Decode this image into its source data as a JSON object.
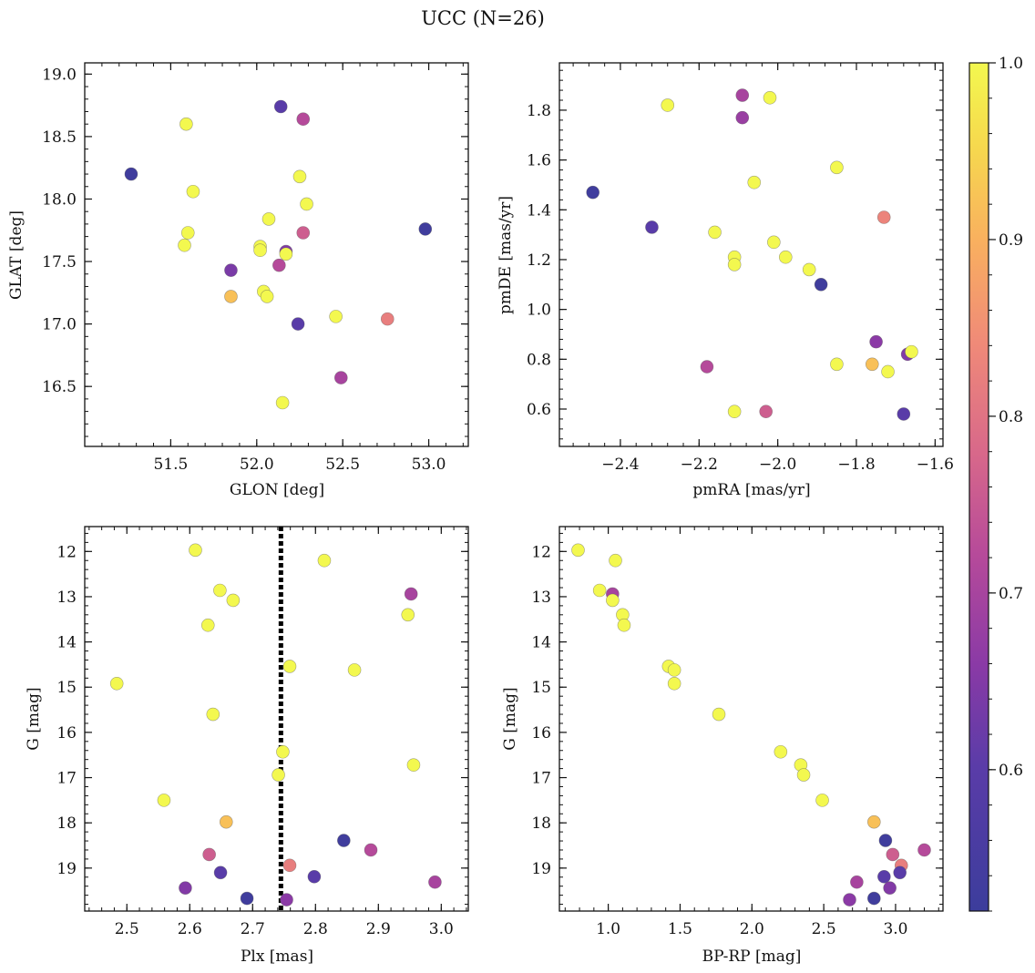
{
  "figure": {
    "title": "UCC (N=26)",
    "colorbar": {
      "ticks": [
        "0.6",
        "0.7",
        "0.8",
        "0.9",
        "1.0"
      ],
      "tick_values": [
        0.6,
        0.7,
        0.8,
        0.9,
        1.0
      ],
      "range": [
        0.52,
        1.0
      ],
      "colormap": "plasma"
    }
  },
  "chart_data": [
    {
      "type": "scatter",
      "xlabel": "GLON [deg]",
      "ylabel": "GLAT [deg]",
      "xlim": [
        51.0,
        53.23
      ],
      "ylim": [
        16.02,
        19.09
      ],
      "y_inverted": false,
      "xticks": [
        "51.5",
        "52.0",
        "52.5",
        "53.0"
      ],
      "xtick_values": [
        51.5,
        52.0,
        52.5,
        53.0
      ],
      "yticks": [
        "16.5",
        "17.0",
        "17.5",
        "18.0",
        "18.5",
        "19.0"
      ],
      "ytick_values": [
        16.5,
        17.0,
        17.5,
        18.0,
        18.5,
        19.0
      ],
      "points": [
        {
          "x": 51.27,
          "y": 18.2,
          "c": 0.53
        },
        {
          "x": 51.59,
          "y": 18.6,
          "c": 1.0
        },
        {
          "x": 51.63,
          "y": 18.06,
          "c": 1.0
        },
        {
          "x": 51.6,
          "y": 17.73,
          "c": 1.0
        },
        {
          "x": 51.58,
          "y": 17.63,
          "c": 1.0
        },
        {
          "x": 51.85,
          "y": 17.43,
          "c": 0.64
        },
        {
          "x": 51.85,
          "y": 17.22,
          "c": 0.92
        },
        {
          "x": 52.02,
          "y": 17.62,
          "c": 1.0
        },
        {
          "x": 52.02,
          "y": 17.59,
          "c": 1.0
        },
        {
          "x": 52.07,
          "y": 17.84,
          "c": 1.0
        },
        {
          "x": 52.04,
          "y": 17.26,
          "c": 1.0
        },
        {
          "x": 52.06,
          "y": 17.22,
          "c": 1.0
        },
        {
          "x": 52.14,
          "y": 18.74,
          "c": 0.6
        },
        {
          "x": 52.27,
          "y": 18.64,
          "c": 0.72
        },
        {
          "x": 52.25,
          "y": 18.18,
          "c": 1.0
        },
        {
          "x": 52.29,
          "y": 17.96,
          "c": 1.0
        },
        {
          "x": 52.27,
          "y": 17.73,
          "c": 0.76
        },
        {
          "x": 52.17,
          "y": 17.58,
          "c": 0.65
        },
        {
          "x": 52.17,
          "y": 17.56,
          "c": 1.0
        },
        {
          "x": 52.13,
          "y": 17.47,
          "c": 0.72
        },
        {
          "x": 52.24,
          "y": 17.0,
          "c": 0.6
        },
        {
          "x": 52.46,
          "y": 17.06,
          "c": 1.0
        },
        {
          "x": 52.49,
          "y": 16.57,
          "c": 0.7
        },
        {
          "x": 52.15,
          "y": 16.37,
          "c": 1.0
        },
        {
          "x": 52.76,
          "y": 17.04,
          "c": 0.82
        },
        {
          "x": 52.98,
          "y": 17.76,
          "c": 0.53
        }
      ]
    },
    {
      "type": "scatter",
      "xlabel": "pmRA [mas/yr]",
      "ylabel": "pmDE [mas/yr]",
      "xlim": [
        -2.555,
        -1.58
      ],
      "ylim": [
        0.45,
        1.99
      ],
      "y_inverted": false,
      "xticks": [
        "−2.4",
        "−2.2",
        "−2.0",
        "−1.8",
        "−1.6"
      ],
      "xtick_values": [
        -2.4,
        -2.2,
        -2.0,
        -1.8,
        -1.6
      ],
      "yticks": [
        "0.6",
        "0.8",
        "1.0",
        "1.2",
        "1.4",
        "1.6",
        "1.8"
      ],
      "ytick_values": [
        0.6,
        0.8,
        1.0,
        1.2,
        1.4,
        1.6,
        1.8
      ],
      "points": [
        {
          "x": -2.47,
          "y": 1.47,
          "c": 0.53
        },
        {
          "x": -2.32,
          "y": 1.33,
          "c": 0.6
        },
        {
          "x": -2.28,
          "y": 1.82,
          "c": 1.0
        },
        {
          "x": -2.09,
          "y": 1.86,
          "c": 0.7
        },
        {
          "x": -2.02,
          "y": 1.85,
          "c": 1.0
        },
        {
          "x": -2.09,
          "y": 1.77,
          "c": 0.68
        },
        {
          "x": -1.85,
          "y": 1.57,
          "c": 1.0
        },
        {
          "x": -2.06,
          "y": 1.51,
          "c": 1.0
        },
        {
          "x": -1.73,
          "y": 1.37,
          "c": 0.83
        },
        {
          "x": -2.16,
          "y": 1.31,
          "c": 1.0
        },
        {
          "x": -2.01,
          "y": 1.27,
          "c": 1.0
        },
        {
          "x": -1.98,
          "y": 1.21,
          "c": 1.0
        },
        {
          "x": -2.11,
          "y": 1.21,
          "c": 1.0
        },
        {
          "x": -2.11,
          "y": 1.18,
          "c": 1.0
        },
        {
          "x": -1.92,
          "y": 1.16,
          "c": 1.0
        },
        {
          "x": -1.89,
          "y": 1.1,
          "c": 0.53
        },
        {
          "x": -1.75,
          "y": 0.87,
          "c": 0.66
        },
        {
          "x": -1.67,
          "y": 0.82,
          "c": 0.65
        },
        {
          "x": -1.66,
          "y": 0.83,
          "c": 1.0
        },
        {
          "x": -1.85,
          "y": 0.78,
          "c": 1.0
        },
        {
          "x": -1.76,
          "y": 0.78,
          "c": 0.92
        },
        {
          "x": -1.72,
          "y": 0.75,
          "c": 1.0
        },
        {
          "x": -2.18,
          "y": 0.77,
          "c": 0.72
        },
        {
          "x": -2.11,
          "y": 0.59,
          "c": 1.0
        },
        {
          "x": -2.03,
          "y": 0.59,
          "c": 0.76
        },
        {
          "x": -1.68,
          "y": 0.58,
          "c": 0.6
        }
      ]
    },
    {
      "type": "scatter",
      "xlabel": "Plx [mas]",
      "ylabel": "G [mag]",
      "xlim": [
        2.433,
        3.043
      ],
      "ylim": [
        19.95,
        11.45
      ],
      "y_inverted": true,
      "vline": {
        "x": 2.745,
        "style": "dotted"
      },
      "xticks": [
        "2.5",
        "2.6",
        "2.7",
        "2.8",
        "2.9",
        "3.0"
      ],
      "xtick_values": [
        2.5,
        2.6,
        2.7,
        2.8,
        2.9,
        3.0
      ],
      "yticks": [
        "12",
        "13",
        "14",
        "15",
        "16",
        "17",
        "18",
        "19"
      ],
      "ytick_values": [
        12,
        13,
        14,
        15,
        16,
        17,
        18,
        19
      ],
      "points": [
        {
          "x": 2.609,
          "y": 11.97,
          "c": 1.0
        },
        {
          "x": 2.814,
          "y": 12.2,
          "c": 1.0
        },
        {
          "x": 2.648,
          "y": 12.86,
          "c": 1.0
        },
        {
          "x": 2.669,
          "y": 13.08,
          "c": 1.0
        },
        {
          "x": 2.952,
          "y": 12.94,
          "c": 0.7
        },
        {
          "x": 2.947,
          "y": 13.4,
          "c": 1.0
        },
        {
          "x": 2.629,
          "y": 13.63,
          "c": 1.0
        },
        {
          "x": 2.759,
          "y": 14.54,
          "c": 1.0
        },
        {
          "x": 2.862,
          "y": 14.62,
          "c": 1.0
        },
        {
          "x": 2.484,
          "y": 14.92,
          "c": 1.0
        },
        {
          "x": 2.637,
          "y": 15.6,
          "c": 1.0
        },
        {
          "x": 2.748,
          "y": 16.43,
          "c": 1.0
        },
        {
          "x": 2.956,
          "y": 16.72,
          "c": 1.0
        },
        {
          "x": 2.741,
          "y": 16.94,
          "c": 1.0
        },
        {
          "x": 2.559,
          "y": 17.5,
          "c": 1.0
        },
        {
          "x": 2.658,
          "y": 17.98,
          "c": 0.92
        },
        {
          "x": 2.845,
          "y": 18.39,
          "c": 0.53
        },
        {
          "x": 2.631,
          "y": 18.7,
          "c": 0.76
        },
        {
          "x": 2.888,
          "y": 18.6,
          "c": 0.72
        },
        {
          "x": 2.759,
          "y": 18.94,
          "c": 0.82
        },
        {
          "x": 2.649,
          "y": 19.1,
          "c": 0.6
        },
        {
          "x": 2.798,
          "y": 19.19,
          "c": 0.6
        },
        {
          "x": 2.593,
          "y": 19.44,
          "c": 0.65
        },
        {
          "x": 2.99,
          "y": 19.31,
          "c": 0.7
        },
        {
          "x": 2.691,
          "y": 19.67,
          "c": 0.53
        },
        {
          "x": 2.754,
          "y": 19.7,
          "c": 0.66
        }
      ]
    },
    {
      "type": "scatter",
      "xlabel": "BP-RP [mag]",
      "ylabel": "G [mag]",
      "xlim": [
        0.66,
        3.33
      ],
      "ylim": [
        19.95,
        11.45
      ],
      "y_inverted": true,
      "xticks": [
        "1.0",
        "1.5",
        "2.0",
        "2.5",
        "3.0"
      ],
      "xtick_values": [
        1.0,
        1.5,
        2.0,
        2.5,
        3.0
      ],
      "yticks": [
        "12",
        "13",
        "14",
        "15",
        "16",
        "17",
        "18",
        "19"
      ],
      "ytick_values": [
        12,
        13,
        14,
        15,
        16,
        17,
        18,
        19
      ],
      "points": [
        {
          "x": 0.79,
          "y": 11.97,
          "c": 1.0
        },
        {
          "x": 1.05,
          "y": 12.2,
          "c": 1.0
        },
        {
          "x": 0.94,
          "y": 12.86,
          "c": 1.0
        },
        {
          "x": 1.03,
          "y": 12.94,
          "c": 0.7
        },
        {
          "x": 1.03,
          "y": 13.08,
          "c": 1.0
        },
        {
          "x": 1.1,
          "y": 13.4,
          "c": 1.0
        },
        {
          "x": 1.11,
          "y": 13.63,
          "c": 1.0
        },
        {
          "x": 1.42,
          "y": 14.54,
          "c": 1.0
        },
        {
          "x": 1.46,
          "y": 14.62,
          "c": 1.0
        },
        {
          "x": 1.46,
          "y": 14.92,
          "c": 1.0
        },
        {
          "x": 1.77,
          "y": 15.6,
          "c": 1.0
        },
        {
          "x": 2.2,
          "y": 16.43,
          "c": 1.0
        },
        {
          "x": 2.34,
          "y": 16.72,
          "c": 1.0
        },
        {
          "x": 2.36,
          "y": 16.94,
          "c": 1.0
        },
        {
          "x": 2.49,
          "y": 17.5,
          "c": 1.0
        },
        {
          "x": 2.85,
          "y": 17.98,
          "c": 0.92
        },
        {
          "x": 2.93,
          "y": 18.39,
          "c": 0.53
        },
        {
          "x": 2.98,
          "y": 18.7,
          "c": 0.76
        },
        {
          "x": 3.2,
          "y": 18.6,
          "c": 0.72
        },
        {
          "x": 3.04,
          "y": 18.94,
          "c": 0.82
        },
        {
          "x": 3.03,
          "y": 19.1,
          "c": 0.6
        },
        {
          "x": 2.92,
          "y": 19.19,
          "c": 0.6
        },
        {
          "x": 2.96,
          "y": 19.44,
          "c": 0.65
        },
        {
          "x": 2.73,
          "y": 19.31,
          "c": 0.7
        },
        {
          "x": 2.85,
          "y": 19.67,
          "c": 0.53
        },
        {
          "x": 2.68,
          "y": 19.7,
          "c": 0.66
        }
      ]
    }
  ]
}
